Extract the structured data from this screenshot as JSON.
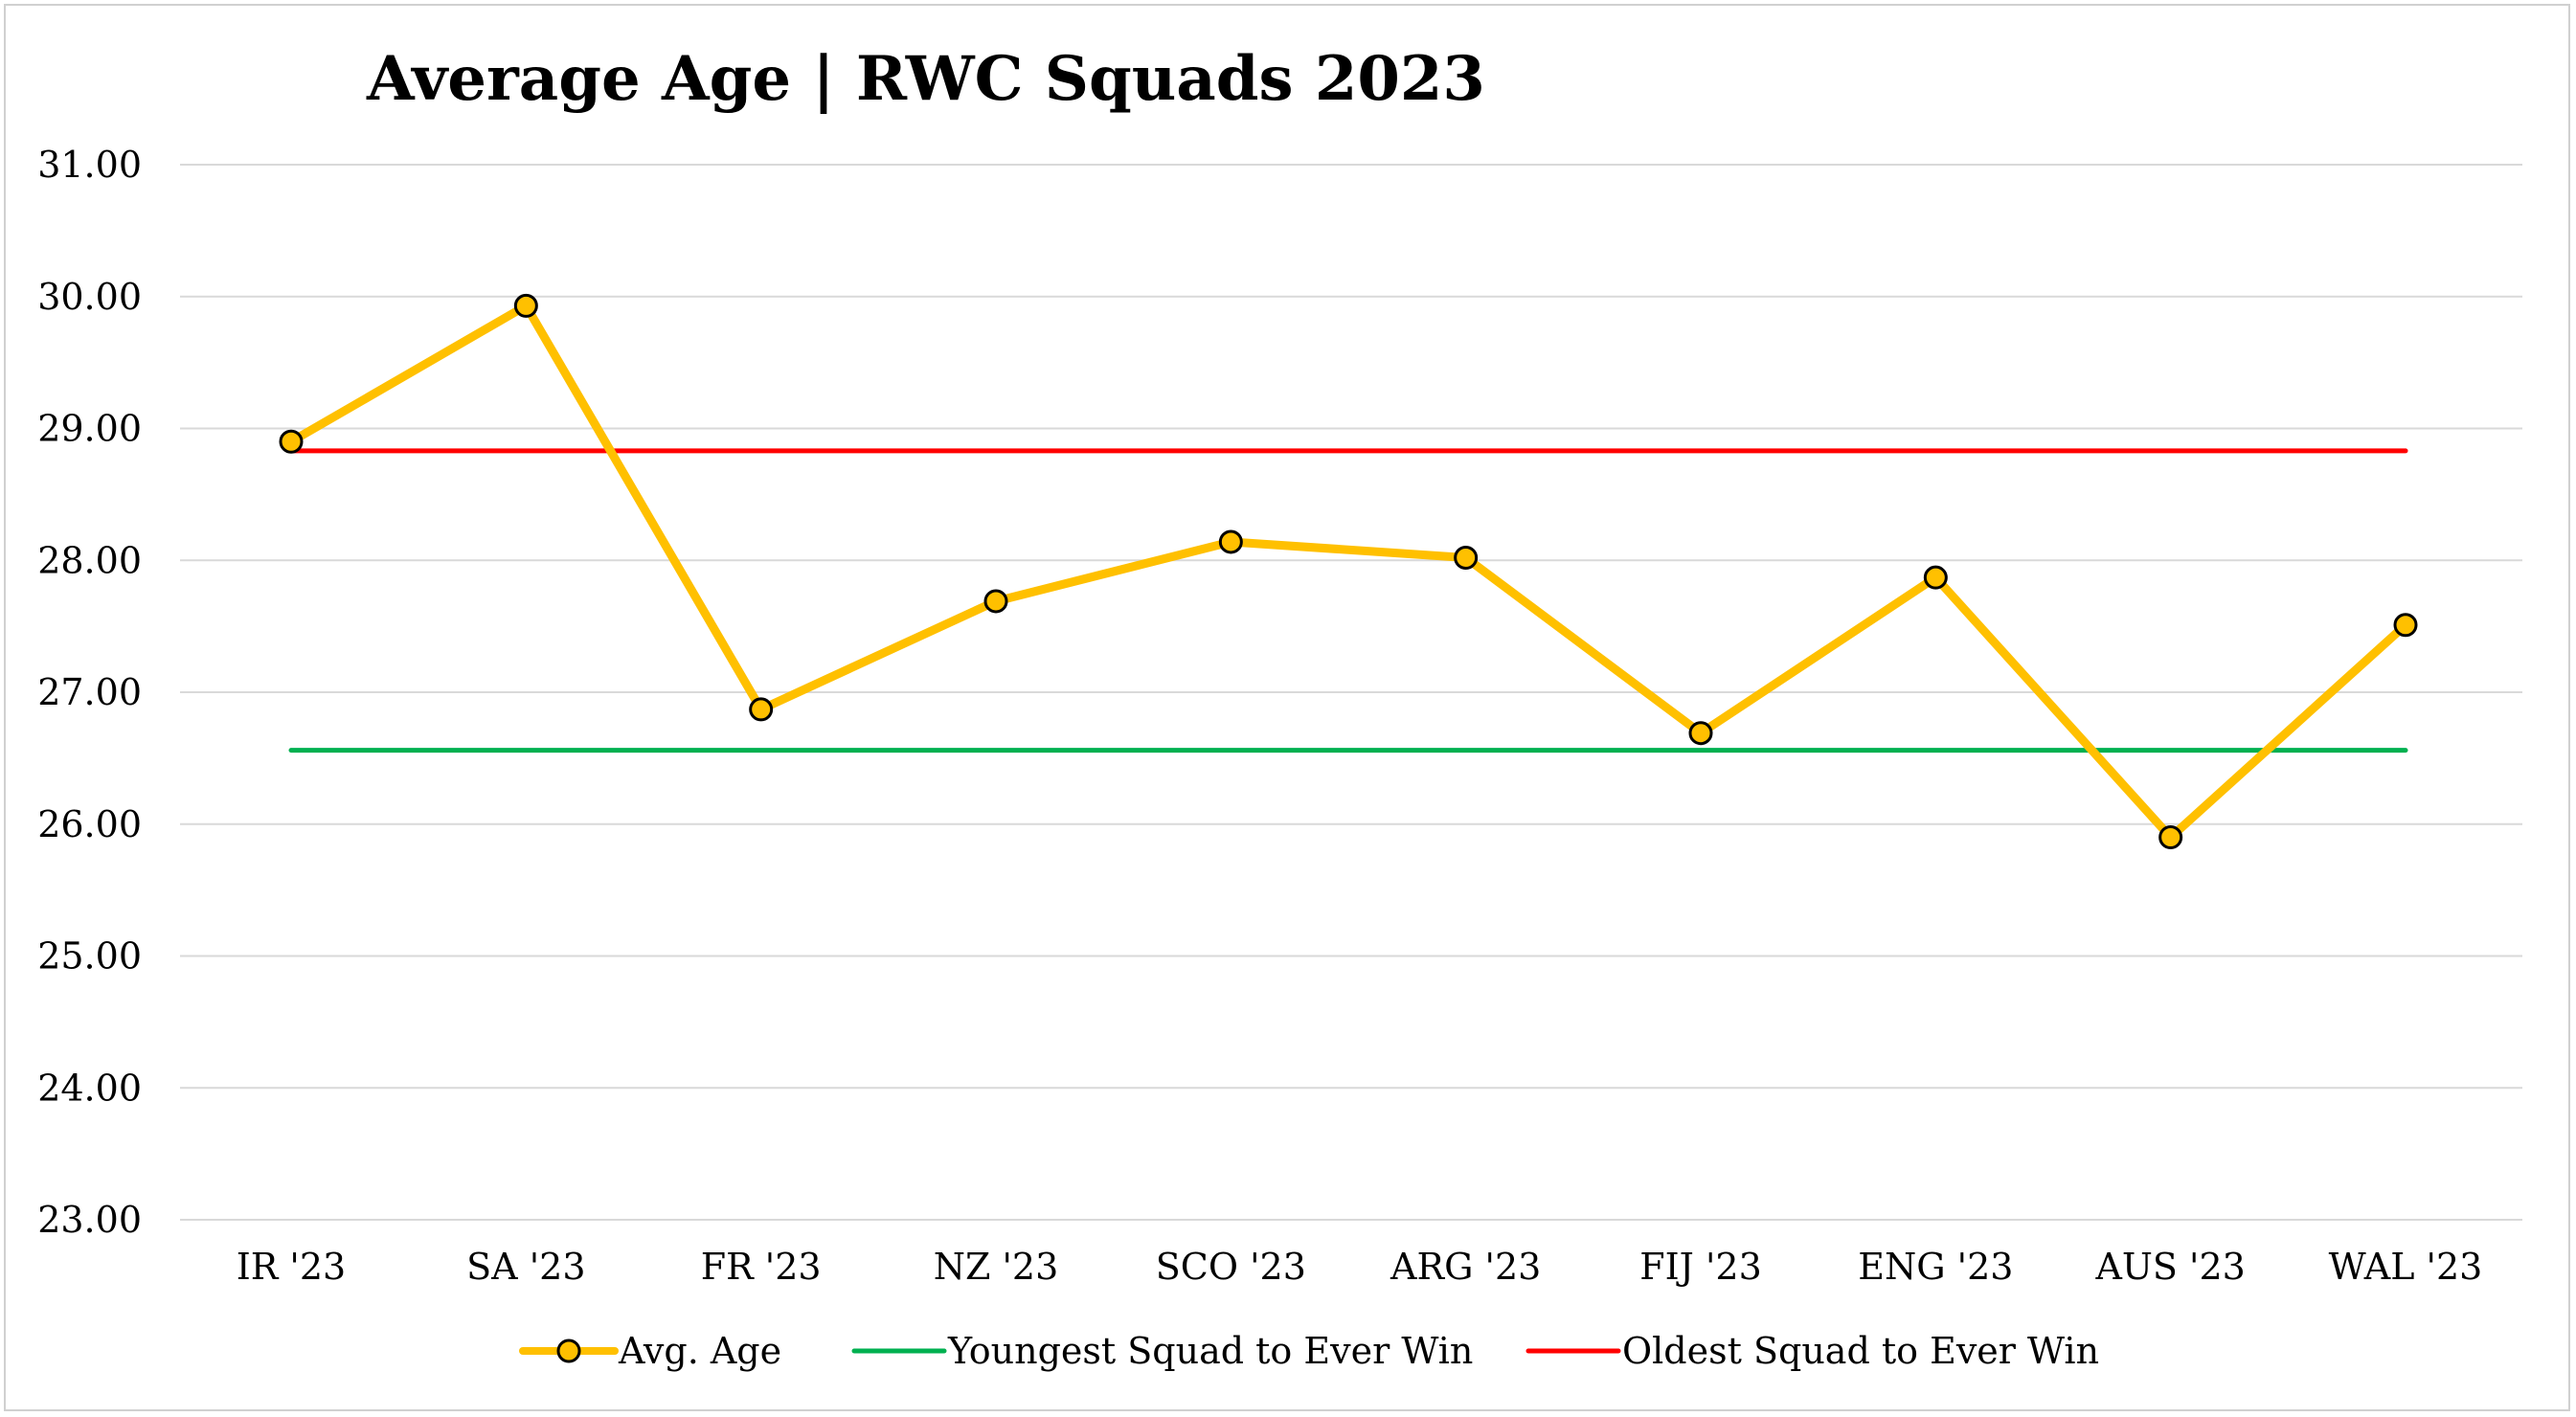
{
  "chart_data": {
    "type": "line",
    "title": "Average Age | RWC Squads 2023",
    "xlabel": "",
    "ylabel": "",
    "categories": [
      "IR '23",
      "SA '23",
      "FR '23",
      "NZ '23",
      "SCO '23",
      "ARG '23",
      "FIJ '23",
      "ENG '23",
      "AUS '23",
      "WAL '23"
    ],
    "ylim": [
      23,
      31
    ],
    "yticks": [
      "23.00",
      "24.00",
      "25.00",
      "26.00",
      "27.00",
      "28.00",
      "29.00",
      "30.00",
      "31.00"
    ],
    "grid": true,
    "legend_position": "bottom",
    "series": [
      {
        "name": "Avg. Age",
        "color": "#FFC000",
        "marker": "circle",
        "values": [
          28.9,
          29.93,
          26.87,
          27.69,
          28.14,
          28.02,
          26.69,
          27.87,
          25.9,
          27.51
        ]
      },
      {
        "name": "Youngest Squad to Ever Win",
        "color": "#00B050",
        "marker": "none",
        "values": [
          26.56,
          26.56,
          26.56,
          26.56,
          26.56,
          26.56,
          26.56,
          26.56,
          26.56,
          26.56
        ]
      },
      {
        "name": "Oldest Squad to Ever Win",
        "color": "#FF0000",
        "marker": "none",
        "values": [
          28.83,
          28.83,
          28.83,
          28.83,
          28.83,
          28.83,
          28.83,
          28.83,
          28.83,
          28.83
        ]
      }
    ]
  }
}
